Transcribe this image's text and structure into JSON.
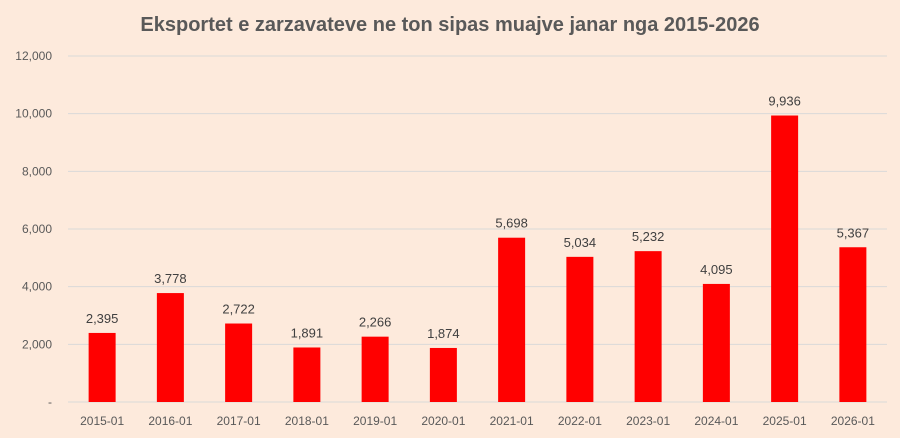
{
  "chart_data": {
    "type": "bar",
    "title": "Eksportet e zarzavateve ne ton sipas muajve janar nga 2015-2026",
    "xlabel": "",
    "ylabel": "",
    "categories": [
      "2015-01",
      "2016-01",
      "2017-01",
      "2018-01",
      "2019-01",
      "2020-01",
      "2021-01",
      "2022-01",
      "2023-01",
      "2024-01",
      "2025-01",
      "2026-01"
    ],
    "values": [
      2395,
      3778,
      2722,
      1891,
      2266,
      1874,
      5698,
      5034,
      5232,
      4095,
      9936,
      5367
    ],
    "data_labels": [
      "2,395",
      "3,778",
      "2,722",
      "1,891",
      "2,266",
      "1,874",
      "5,698",
      "5,034",
      "5,232",
      "4,095",
      "9,936",
      "5,367"
    ],
    "ylim": [
      0,
      12000
    ],
    "yticks": [
      0,
      2000,
      4000,
      6000,
      8000,
      10000,
      12000
    ],
    "ytick_labels": [
      "-",
      "2,000",
      "4,000",
      "6,000",
      "8,000",
      "10,000",
      "12,000"
    ],
    "grid": true,
    "legend": "none",
    "colors": {
      "bar": "#FF0000",
      "background": "#FDEADC",
      "grid": "#D9D9D9"
    }
  }
}
